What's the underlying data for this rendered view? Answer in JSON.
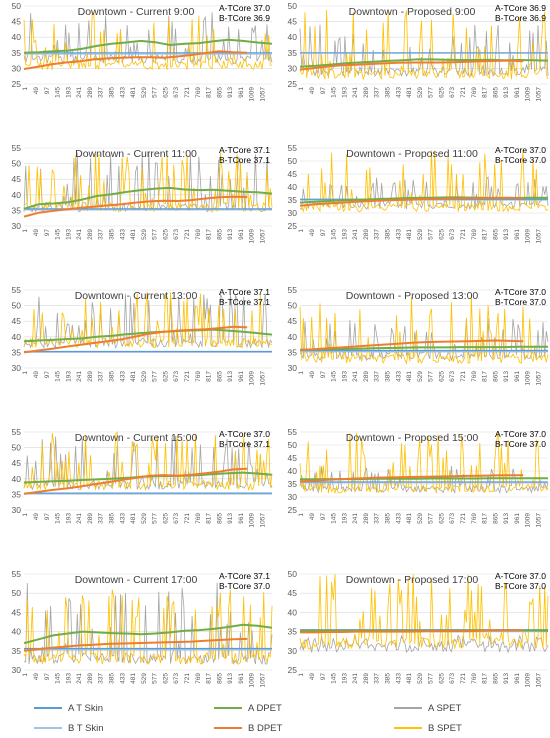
{
  "colors": {
    "a_t_skin": "#5B9BD5",
    "b_t_skin": "#9DC3E6",
    "a_dpet": "#70AD47",
    "b_dpet": "#ED7D31",
    "a_spet": "#A5A5A5",
    "b_spet": "#FFC000",
    "grid": "#D9D9D9",
    "axis": "#BFBFBF"
  },
  "legend": {
    "a_t_skin": "A T Skin",
    "b_t_skin": "B T Skin",
    "a_dpet": "A DPET",
    "b_dpet": "B DPET",
    "a_spet": "A SPET",
    "b_spet": "B SPET"
  },
  "chart_data": [
    {
      "type": "line",
      "title": "Downtown - Current 9:00",
      "tcore_a": "A-TCore 37.0",
      "tcore_b": "B-TCore 36.9",
      "ylim": [
        25,
        50
      ],
      "yticks": [
        "25",
        "30",
        "35",
        "40",
        "45",
        "50"
      ],
      "x_ticks": [
        "1",
        "49",
        "97",
        "145",
        "193",
        "241",
        "289",
        "337",
        "385",
        "433",
        "481",
        "529",
        "577",
        "625",
        "673",
        "721",
        "769",
        "817",
        "865",
        "913",
        "961",
        "1009",
        "1057"
      ],
      "series": {
        "a_t_skin": 35.0,
        "b_t_skin": 34.6,
        "a_dpet": [
          35.0,
          35.2,
          35.5,
          35.7,
          36.3,
          37.2,
          37.9,
          38.3,
          38.8,
          38.4,
          37.5,
          37.9,
          38.1,
          38.7,
          39.2,
          38.8,
          38.3,
          37.9
        ],
        "b_dpet": [
          29.8,
          30.5,
          31.3,
          31.9,
          32.3,
          32.9,
          33.2,
          33.4,
          33.6,
          33.6,
          33.4,
          33.8,
          34.3,
          34.9,
          35.5,
          35.2,
          35.0
        ],
        "a_spet": {
          "base": 33,
          "hi": 48,
          "seed": 11
        },
        "b_spet": {
          "base": 31,
          "hi": 48,
          "seed": 23
        }
      }
    },
    {
      "type": "line",
      "title": "Downtown - Proposed 9:00",
      "tcore_a": "A-TCore 36.9",
      "tcore_b": "B-TCore 36.9",
      "ylim": [
        25,
        50
      ],
      "yticks": [
        "25",
        "30",
        "35",
        "40",
        "45",
        "50"
      ],
      "x_ticks": [
        "1",
        "49",
        "97",
        "145",
        "193",
        "241",
        "289",
        "337",
        "385",
        "433",
        "481",
        "529",
        "577",
        "625",
        "673",
        "721",
        "769",
        "817",
        "865",
        "913",
        "961",
        "1009",
        "1057"
      ],
      "series": {
        "a_t_skin": 35.0,
        "b_t_skin": 34.9,
        "a_dpet": [
          30.5,
          30.8,
          31.2,
          31.6,
          31.9,
          32.1,
          32.4,
          32.6,
          32.9,
          32.9,
          32.8,
          32.7,
          32.7,
          32.8,
          32.6,
          32.7,
          32.6,
          32.5
        ],
        "b_dpet": [
          29.6,
          30.1,
          30.6,
          31.0,
          31.2,
          31.4,
          31.6,
          31.8,
          31.9,
          31.9,
          31.9,
          32.0,
          32.1,
          32.3,
          32.4,
          32.5,
          32.3
        ],
        "a_spet": {
          "base": 29,
          "hi": 45,
          "seed": 37
        },
        "b_spet": {
          "base": 28,
          "hi": 50,
          "seed": 41
        }
      }
    },
    {
      "type": "line",
      "title": "Downtown - Current 11:00",
      "tcore_a": "A-TCore 37.1",
      "tcore_b": "B-TCore 37.1",
      "ylim": [
        30,
        55
      ],
      "yticks": [
        "30",
        "35",
        "40",
        "45",
        "50",
        "55"
      ],
      "x_ticks": [
        "1",
        "49",
        "97",
        "145",
        "193",
        "241",
        "289",
        "337",
        "385",
        "433",
        "481",
        "529",
        "577",
        "625",
        "673",
        "721",
        "769",
        "817",
        "865",
        "913",
        "961",
        "1009",
        "1057"
      ],
      "series": {
        "a_t_skin": 35.5,
        "b_t_skin": 35.3,
        "a_dpet": [
          35.5,
          37.0,
          37.2,
          37.6,
          38.5,
          39.6,
          40.2,
          40.9,
          41.5,
          42.0,
          42.2,
          41.7,
          41.5,
          41.6,
          41.3,
          41.0,
          40.8,
          40.4
        ],
        "b_dpet": [
          33.0,
          34.2,
          34.8,
          35.3,
          35.8,
          36.2,
          36.6,
          37.0,
          37.5,
          37.9,
          38.1,
          38.0,
          38.3,
          38.8,
          39.2,
          39.4,
          39.3
        ],
        "a_spet": {
          "base": 36,
          "hi": 54,
          "seed": 53
        },
        "b_spet": {
          "base": 36,
          "hi": 54,
          "seed": 61
        }
      }
    },
    {
      "type": "line",
      "title": "Downtown - Proposed 11:00",
      "tcore_a": "A-TCore 37.0",
      "tcore_b": "B-TCore 37.0",
      "ylim": [
        25,
        55
      ],
      "yticks": [
        "25",
        "30",
        "35",
        "40",
        "45",
        "50",
        "55"
      ],
      "x_ticks": [
        "1",
        "49",
        "97",
        "145",
        "193",
        "241",
        "289",
        "337",
        "385",
        "433",
        "481",
        "529",
        "577",
        "625",
        "673",
        "721",
        "769",
        "817",
        "865",
        "913",
        "961",
        "1009",
        "1057"
      ],
      "series": {
        "a_t_skin": 35.3,
        "b_t_skin": 35.0,
        "a_dpet": [
          34.0,
          34.3,
          34.6,
          34.9,
          35.1,
          35.3,
          35.5,
          35.7,
          35.8,
          35.9,
          36.0,
          36.0,
          35.9,
          35.8,
          35.8,
          35.8,
          35.9,
          35.9
        ],
        "b_dpet": [
          32.8,
          33.3,
          33.7,
          34.0,
          34.3,
          34.6,
          34.8,
          35.0,
          35.2,
          35.4,
          35.5,
          35.6,
          35.6,
          35.7,
          35.8,
          35.8,
          35.7
        ],
        "a_spet": {
          "base": 33,
          "hi": 44,
          "seed": 71
        },
        "b_spet": {
          "base": 32,
          "hi": 55,
          "seed": 79
        }
      }
    },
    {
      "type": "line",
      "title": "Downtown - Current 13:00",
      "tcore_a": "A-TCore 37.1",
      "tcore_b": "B-TCore 37.1",
      "ylim": [
        30,
        55
      ],
      "yticks": [
        "30",
        "35",
        "40",
        "45",
        "50",
        "55"
      ],
      "x_ticks": [
        "1",
        "49",
        "97",
        "145",
        "193",
        "241",
        "289",
        "337",
        "385",
        "433",
        "481",
        "529",
        "577",
        "625",
        "673",
        "721",
        "769",
        "817",
        "865",
        "913",
        "961",
        "1009",
        "1057"
      ],
      "series": {
        "a_t_skin": 35.3,
        "b_t_skin": 35.1,
        "a_dpet": [
          38.6,
          38.8,
          39.0,
          39.3,
          39.5,
          40.0,
          40.3,
          40.8,
          41.2,
          41.5,
          41.7,
          42.0,
          42.1,
          42.3,
          42.0,
          41.6,
          41.2,
          40.7
        ],
        "b_dpet": [
          35.0,
          35.6,
          36.2,
          36.8,
          37.4,
          38.0,
          38.6,
          39.2,
          40.1,
          41.0,
          41.6,
          42.0,
          42.2,
          42.4,
          42.8,
          43.2,
          43.0
        ],
        "a_spet": {
          "base": 38,
          "hi": 54,
          "seed": 83
        },
        "b_spet": {
          "base": 38,
          "hi": 55,
          "seed": 89
        }
      }
    },
    {
      "type": "line",
      "title": "Downtown - Proposed 13:00",
      "tcore_a": "A-TCore 37.0",
      "tcore_b": "B-TCore 37.0",
      "ylim": [
        30,
        55
      ],
      "yticks": [
        "30",
        "35",
        "40",
        "45",
        "50",
        "55"
      ],
      "x_ticks": [
        "1",
        "49",
        "97",
        "145",
        "193",
        "241",
        "289",
        "337",
        "385",
        "433",
        "481",
        "529",
        "577",
        "625",
        "673",
        "721",
        "769",
        "817",
        "865",
        "913",
        "961",
        "1009",
        "1057"
      ],
      "series": {
        "a_t_skin": 35.6,
        "b_t_skin": 35.3,
        "a_dpet": [
          35.8,
          35.9,
          36.0,
          36.1,
          36.2,
          36.3,
          36.4,
          36.5,
          36.6,
          36.6,
          36.6,
          36.7,
          36.7,
          36.7,
          36.7,
          36.8,
          36.8,
          36.8
        ],
        "b_dpet": [
          35.8,
          36.0,
          36.3,
          36.6,
          36.9,
          37.2,
          37.5,
          37.8,
          38.1,
          38.3,
          38.4,
          38.5,
          38.6,
          38.7,
          38.8,
          38.7,
          38.6
        ],
        "a_spet": {
          "base": 34,
          "hi": 46,
          "seed": 97
        },
        "b_spet": {
          "base": 33,
          "hi": 55,
          "seed": 101
        }
      }
    },
    {
      "type": "line",
      "title": "Downtown - Current 15:00",
      "tcore_a": "A-TCore 37.0",
      "tcore_b": "B-TCore 37.1",
      "ylim": [
        30,
        55
      ],
      "yticks": [
        "30",
        "35",
        "40",
        "45",
        "50",
        "55"
      ],
      "x_ticks": [
        "1",
        "49",
        "97",
        "145",
        "193",
        "241",
        "289",
        "337",
        "385",
        "433",
        "481",
        "529",
        "577",
        "625",
        "673",
        "721",
        "769",
        "817",
        "865",
        "913",
        "961",
        "1009",
        "1057"
      ],
      "series": {
        "a_t_skin": 35.4,
        "b_t_skin": 35.2,
        "a_dpet": [
          38.8,
          39.0,
          39.2,
          39.4,
          39.6,
          39.8,
          40.0,
          40.3,
          40.6,
          40.8,
          40.9,
          41.0,
          41.2,
          41.5,
          41.8,
          42.0,
          41.7,
          41.3
        ],
        "b_dpet": [
          35.2,
          35.8,
          36.4,
          36.9,
          37.5,
          38.2,
          38.9,
          39.6,
          40.3,
          41.0,
          41.2,
          41.0,
          41.3,
          41.8,
          42.3,
          43.0,
          43.2
        ],
        "a_spet": {
          "base": 38,
          "hi": 54,
          "seed": 107
        },
        "b_spet": {
          "base": 38,
          "hi": 55,
          "seed": 113
        }
      }
    },
    {
      "type": "line",
      "title": "Downtown - Proposed 15:00",
      "tcore_a": "A-TCore 37.0",
      "tcore_b": "B-TCore 37.0",
      "ylim": [
        25,
        55
      ],
      "yticks": [
        "25",
        "30",
        "35",
        "40",
        "45",
        "50",
        "55"
      ],
      "x_ticks": [
        "1",
        "49",
        "97",
        "145",
        "193",
        "241",
        "289",
        "337",
        "385",
        "433",
        "481",
        "529",
        "577",
        "625",
        "673",
        "721",
        "769",
        "817",
        "865",
        "913",
        "961",
        "1009",
        "1057"
      ],
      "series": {
        "a_t_skin": 35.8,
        "b_t_skin": 35.5,
        "a_dpet": [
          36.8,
          36.8,
          36.9,
          36.9,
          36.9,
          37.0,
          37.0,
          37.0,
          37.0,
          37.1,
          37.1,
          37.1,
          37.1,
          37.2,
          37.2,
          37.2,
          37.2,
          37.2
        ],
        "b_dpet": [
          36.0,
          36.3,
          36.6,
          36.9,
          37.1,
          37.3,
          37.5,
          37.6,
          37.7,
          37.8,
          37.9,
          38.0,
          38.1,
          38.2,
          38.3,
          38.4,
          38.4
        ],
        "a_spet": {
          "base": 33,
          "hi": 42,
          "seed": 127
        },
        "b_spet": {
          "base": 33,
          "hi": 55,
          "seed": 131
        }
      }
    },
    {
      "type": "line",
      "title": "Downtown - Current 17:00",
      "tcore_a": "A-TCore 37.1",
      "tcore_b": "B-TCore 37.0",
      "ylim": [
        30,
        55
      ],
      "yticks": [
        "30",
        "35",
        "40",
        "45",
        "50",
        "55"
      ],
      "x_ticks": [
        "1",
        "49",
        "97",
        "145",
        "193",
        "241",
        "289",
        "337",
        "385",
        "433",
        "481",
        "529",
        "577",
        "625",
        "673",
        "721",
        "769",
        "817",
        "865",
        "913",
        "961",
        "1009",
        "1057"
      ],
      "series": {
        "a_t_skin": 35.6,
        "b_t_skin": 35.3,
        "a_dpet": [
          37.0,
          38.0,
          39.0,
          39.5,
          40.0,
          39.8,
          39.6,
          39.5,
          39.3,
          39.5,
          39.8,
          40.2,
          40.4,
          40.7,
          41.2,
          41.8,
          41.5,
          41.0
        ],
        "b_dpet": [
          35.0,
          35.4,
          35.8,
          36.1,
          36.4,
          36.6,
          36.8,
          36.9,
          37.0,
          37.1,
          37.2,
          37.3,
          37.4,
          37.6,
          37.8,
          38.0,
          38.1
        ],
        "a_spet": {
          "base": 33,
          "hi": 53,
          "seed": 137
        },
        "b_spet": {
          "base": 33,
          "hi": 51,
          "seed": 139
        }
      }
    },
    {
      "type": "line",
      "title": "Downtown - Proposed 17:00",
      "tcore_a": "A-TCore 37.0",
      "tcore_b": "B-TCore 37.0",
      "ylim": [
        25,
        50
      ],
      "yticks": [
        "25",
        "30",
        "35",
        "40",
        "45",
        "50"
      ],
      "x_ticks": [
        "1",
        "49",
        "97",
        "145",
        "193",
        "241",
        "289",
        "337",
        "385",
        "433",
        "481",
        "529",
        "577",
        "625",
        "673",
        "721",
        "769",
        "817",
        "865",
        "913",
        "961",
        "1009",
        "1057"
      ],
      "series": {
        "a_t_skin": 35.5,
        "b_t_skin": 35.0,
        "a_dpet": [
          35.2,
          35.2,
          35.2,
          35.2,
          35.2,
          35.2,
          35.2,
          35.2,
          35.2,
          35.2,
          35.2,
          35.2,
          35.3,
          35.3,
          35.3,
          35.3,
          35.3,
          35.2
        ],
        "b_dpet": [
          34.8,
          34.8,
          34.9,
          34.9,
          35.0,
          35.0,
          35.0,
          35.0,
          35.0,
          35.1,
          35.1,
          35.1,
          35.1,
          35.2,
          35.3,
          35.3,
          35.3
        ],
        "a_spet": {
          "base": 31,
          "hi": 34,
          "seed": 149
        },
        "b_spet": {
          "base": 32,
          "hi": 50,
          "seed": 151
        }
      }
    }
  ]
}
